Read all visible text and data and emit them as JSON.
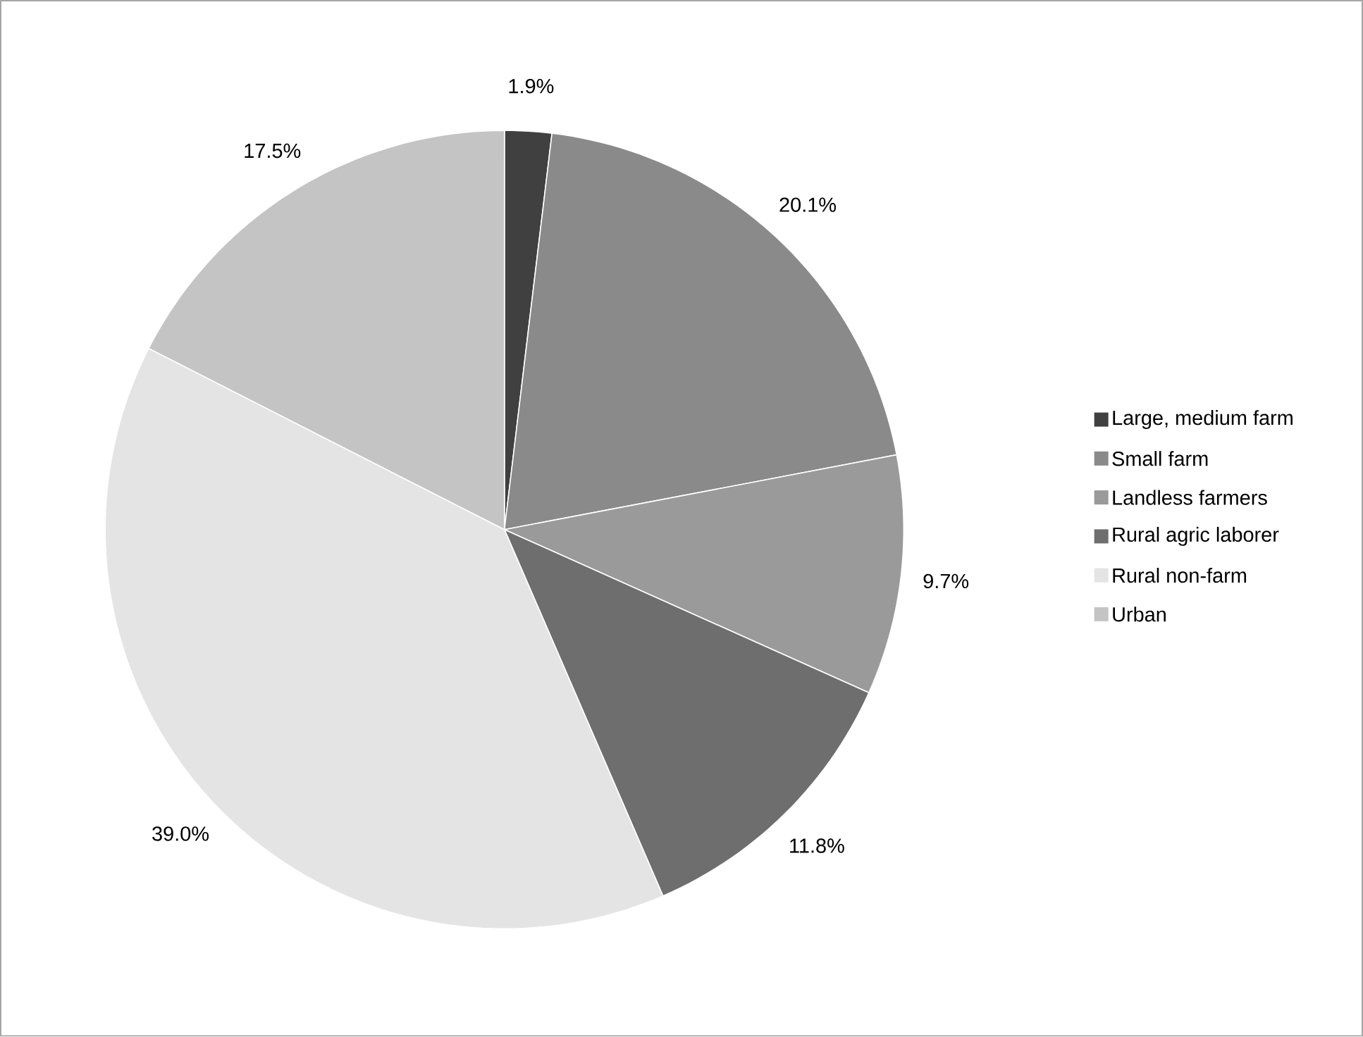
{
  "chart_data": {
    "type": "pie",
    "categories": [
      "Large, medium farm",
      "Small farm",
      "Landless farmers",
      "Rural agric laborer",
      "Rural non-farm",
      "Urban"
    ],
    "values": [
      1.9,
      20.1,
      9.7,
      11.8,
      39.0,
      17.5
    ],
    "value_labels": [
      "1.9%",
      "20.1%",
      "9.7%",
      "11.8%",
      "39.0%",
      "17.5%"
    ],
    "colors": [
      "#404040",
      "#8a8a8a",
      "#9a9a9a",
      "#6e6e6e",
      "#e4e4e4",
      "#c4c4c4"
    ],
    "legend": "right"
  }
}
